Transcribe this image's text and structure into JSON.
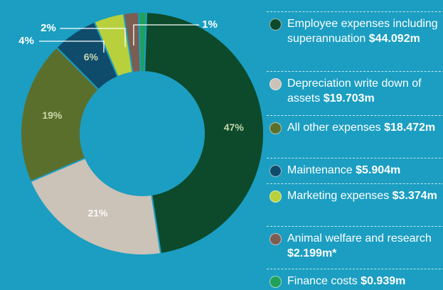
{
  "chart_data": {
    "type": "donut",
    "categories": [
      "Employee expenses including superannuation",
      "Depreciation write down of assets",
      "All other expenses",
      "Maintenance",
      "Marketing expenses",
      "Animal welfare and research",
      "Finance costs"
    ],
    "amount_labels": [
      "$44.092m",
      "$19.703m",
      "$18.472m",
      "$5.904m",
      "$3.374m",
      "$2.199m*",
      "$0.939m"
    ],
    "values": [
      47,
      21,
      19,
      6,
      4,
      2,
      1
    ],
    "value_labels": [
      "47%",
      "21%",
      "19%",
      "6%",
      "4%",
      "2%",
      "1%"
    ],
    "colors": [
      "#0c4a2b",
      "#cbc2b8",
      "#5b6f2c",
      "#0f4c6c",
      "#b7d03c",
      "#7b5d52",
      "#20a05a"
    ]
  }
}
